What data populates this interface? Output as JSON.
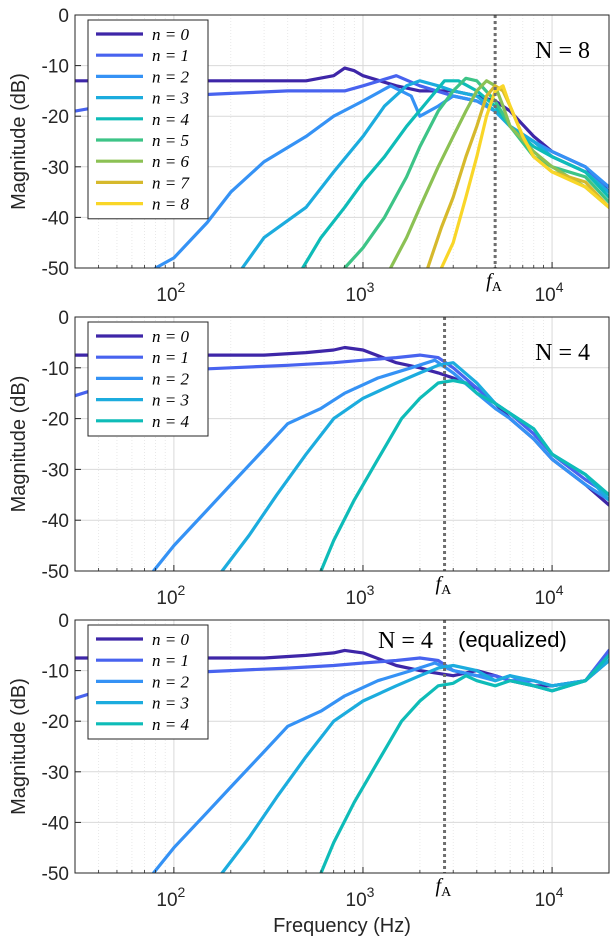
{
  "figure": {
    "xlabel": "Frequency (Hz)",
    "ylabel": "Magnitude (dB)"
  },
  "colors": [
    "#3e26a8",
    "#4863ef",
    "#3592f5",
    "#1cacde",
    "#0ebcb8",
    "#3dc487",
    "#8cc154",
    "#d6b92c",
    "#f9d628"
  ],
  "chart_data": [
    {
      "type": "line",
      "xscale": "log",
      "xlim": [
        30,
        20000
      ],
      "ylim": [
        -50,
        0
      ],
      "xticks": [
        100,
        1000,
        10000
      ],
      "xticklabels": [
        {
          "base": "10",
          "exp": "2"
        },
        {
          "base": "10",
          "exp": "3"
        },
        {
          "base": "10",
          "exp": "4"
        }
      ],
      "yticks": [
        0,
        -10,
        -20,
        -30,
        -40,
        -50
      ],
      "yticklabels": [
        "0",
        "-10",
        "-20",
        "-30",
        "-40",
        "-50"
      ],
      "grid": true,
      "legend_position": "top-left",
      "annotation": {
        "math": "N = 8",
        "text": ""
      },
      "fA": {
        "x": 5000,
        "label": "f",
        "sub": "A"
      },
      "series": [
        {
          "name": "n = 0",
          "x": [
            30,
            100,
            300,
            500,
            700,
            800,
            900,
            1000,
            1500,
            2000,
            3000,
            4000,
            5000,
            6000,
            8000,
            10000,
            15000,
            20000
          ],
          "y": [
            -13,
            -13,
            -13,
            -13,
            -12,
            -10.5,
            -11,
            -12,
            -14,
            -15,
            -15,
            -16,
            -17,
            -19,
            -24,
            -27,
            -30,
            -35
          ]
        },
        {
          "name": "n = 1",
          "x": [
            30,
            60,
            100,
            200,
            400,
            800,
            1000,
            1500,
            2000,
            3000,
            4000,
            5000,
            6000,
            8000,
            10000,
            15000,
            20000
          ],
          "y": [
            -19,
            -17,
            -16,
            -15.5,
            -15,
            -15,
            -14,
            -12,
            -14,
            -16,
            -17,
            -19,
            -22,
            -25,
            -28,
            -31,
            -34
          ]
        },
        {
          "name": "n = 2",
          "x": [
            80,
            100,
            150,
            200,
            300,
            500,
            700,
            1000,
            1400,
            1800,
            2000,
            2500,
            3000,
            4000,
            5000,
            6000,
            8000,
            10000,
            15000,
            20000
          ],
          "y": [
            -50,
            -48,
            -41,
            -35,
            -29,
            -24,
            -20,
            -17,
            -14,
            -16,
            -20,
            -18,
            -16,
            -17,
            -19,
            -22,
            -25,
            -27,
            -30,
            -34
          ]
        },
        {
          "name": "n = 3",
          "x": [
            230,
            300,
            500,
            700,
            1000,
            1300,
            1700,
            2000,
            2500,
            3000,
            4000,
            5000,
            6000,
            8000,
            10000,
            15000,
            20000
          ],
          "y": [
            -50,
            -44,
            -38,
            -31,
            -24,
            -18,
            -14,
            -13,
            -14,
            -15,
            -16,
            -19,
            -22,
            -25,
            -28,
            -31,
            -35
          ]
        },
        {
          "name": "n = 4",
          "x": [
            480,
            600,
            800,
            1000,
            1300,
            1700,
            2200,
            2700,
            3200,
            4000,
            5000,
            6000,
            8000,
            10000,
            15000,
            20000
          ],
          "y": [
            -50,
            -44,
            -38,
            -33,
            -28,
            -22,
            -17,
            -13,
            -13,
            -15,
            -18,
            -22,
            -26,
            -28,
            -31,
            -36
          ]
        },
        {
          "name": "n = 5",
          "x": [
            800,
            1000,
            1300,
            1700,
            2000,
            2500,
            3000,
            3500,
            4000,
            5000,
            6000,
            8000,
            10000,
            15000,
            20000
          ],
          "y": [
            -50,
            -46,
            -40,
            -32,
            -26,
            -19,
            -15,
            -12.5,
            -13,
            -17,
            -22,
            -28,
            -30,
            -32,
            -37
          ]
        },
        {
          "name": "n = 6",
          "x": [
            1400,
            1700,
            2000,
            2500,
            3000,
            3500,
            4000,
            4500,
            5000,
            5500,
            6000,
            8000,
            10000,
            15000,
            20000
          ],
          "y": [
            -50,
            -44,
            -38,
            -30,
            -24,
            -19,
            -15,
            -13,
            -14,
            -18,
            -22,
            -27,
            -30,
            -34,
            -38
          ]
        },
        {
          "name": "n = 7",
          "x": [
            2200,
            2600,
            3000,
            3500,
            4000,
            4500,
            5000,
            5500,
            6000,
            7000,
            8000,
            10000,
            15000,
            20000
          ],
          "y": [
            -50,
            -42,
            -36,
            -28,
            -22,
            -16,
            -14,
            -15,
            -18,
            -24,
            -28,
            -31,
            -33,
            -38
          ]
        },
        {
          "name": "n = 8",
          "x": [
            2600,
            3000,
            3500,
            4000,
            4500,
            5000,
            5500,
            6000,
            7000,
            8000,
            10000,
            15000,
            20000
          ],
          "y": [
            -50,
            -45,
            -36,
            -28,
            -20,
            -15,
            -14,
            -18,
            -24,
            -28,
            -31,
            -34,
            -38
          ]
        }
      ]
    },
    {
      "type": "line",
      "xscale": "log",
      "xlim": [
        30,
        20000
      ],
      "ylim": [
        -50,
        0
      ],
      "xticks": [
        100,
        1000,
        10000
      ],
      "xticklabels": [
        {
          "base": "10",
          "exp": "2"
        },
        {
          "base": "10",
          "exp": "3"
        },
        {
          "base": "10",
          "exp": "4"
        }
      ],
      "yticks": [
        0,
        -10,
        -20,
        -30,
        -40,
        -50
      ],
      "yticklabels": [
        "0",
        "-10",
        "-20",
        "-30",
        "-40",
        "-50"
      ],
      "grid": true,
      "legend_position": "top-left",
      "annotation": {
        "math": "N = 4",
        "text": ""
      },
      "fA": {
        "x": 2700,
        "label": "f",
        "sub": "A"
      },
      "series": [
        {
          "name": "n = 0",
          "x": [
            30,
            100,
            300,
            500,
            700,
            800,
            1000,
            1500,
            2000,
            2500,
            3000,
            4000,
            5000,
            6000,
            8000,
            10000,
            15000,
            20000
          ],
          "y": [
            -7.5,
            -7.5,
            -7.5,
            -7,
            -6.5,
            -6,
            -6.5,
            -9,
            -10,
            -11,
            -12,
            -14,
            -17,
            -20,
            -24,
            -28,
            -33,
            -37
          ]
        },
        {
          "name": "n = 1",
          "x": [
            30,
            60,
            100,
            200,
            400,
            700,
            1000,
            1500,
            2000,
            2500,
            3000,
            4000,
            5000,
            6000,
            8000,
            10000,
            15000,
            20000
          ],
          "y": [
            -15.5,
            -12,
            -10.5,
            -10,
            -9.5,
            -9,
            -8.5,
            -8,
            -7.5,
            -8,
            -10,
            -14,
            -17,
            -19,
            -23,
            -27,
            -32,
            -35
          ]
        },
        {
          "name": "n = 2",
          "x": [
            78,
            100,
            150,
            200,
            300,
            400,
            600,
            800,
            1200,
            1800,
            2400,
            3000,
            4000,
            5000,
            6000,
            8000,
            10000,
            15000,
            20000
          ],
          "y": [
            -50,
            -45,
            -38,
            -33,
            -26,
            -21,
            -18,
            -15,
            -12,
            -10,
            -8.5,
            -11,
            -15,
            -18,
            -20,
            -24,
            -28,
            -33,
            -36
          ]
        },
        {
          "name": "n = 3",
          "x": [
            180,
            250,
            350,
            500,
            700,
            1000,
            1500,
            2000,
            2500,
            3000,
            4000,
            5000,
            6000,
            8000,
            10000,
            15000,
            20000
          ],
          "y": [
            -50,
            -43,
            -35,
            -27,
            -20,
            -16,
            -13,
            -11,
            -9.5,
            -9,
            -13,
            -17,
            -19,
            -22,
            -27,
            -31,
            -36
          ]
        },
        {
          "name": "n = 4",
          "x": [
            600,
            700,
            900,
            1200,
            1600,
            2000,
            2500,
            3000,
            3500,
            4000,
            5000,
            6000,
            8000,
            10000,
            15000,
            20000
          ],
          "y": [
            -50,
            -44,
            -36,
            -28,
            -20,
            -16,
            -13,
            -12.5,
            -13,
            -15,
            -17,
            -19,
            -22,
            -27,
            -31,
            -35
          ]
        }
      ]
    },
    {
      "type": "line",
      "xscale": "log",
      "xlim": [
        30,
        20000
      ],
      "ylim": [
        -50,
        0
      ],
      "xticks": [
        100,
        1000,
        10000
      ],
      "xticklabels": [
        {
          "base": "10",
          "exp": "2"
        },
        {
          "base": "10",
          "exp": "3"
        },
        {
          "base": "10",
          "exp": "4"
        }
      ],
      "yticks": [
        0,
        -10,
        -20,
        -30,
        -40,
        -50
      ],
      "yticklabels": [
        "0",
        "-10",
        "-20",
        "-30",
        "-40",
        "-50"
      ],
      "grid": true,
      "legend_position": "top-left",
      "annotation": {
        "math": "N = 4",
        "text": "(equalized)"
      },
      "fA": {
        "x": 2700,
        "label": "f",
        "sub": "A"
      },
      "series": [
        {
          "name": "n = 0",
          "x": [
            30,
            100,
            300,
            500,
            700,
            800,
            1000,
            1500,
            2000,
            3000,
            4000,
            5000,
            6000,
            8000,
            10000,
            15000,
            20000
          ],
          "y": [
            -7.5,
            -7.5,
            -7.5,
            -7,
            -6.5,
            -6,
            -6.5,
            -9,
            -10,
            -11,
            -10,
            -11,
            -12,
            -13,
            -13,
            -12,
            -8
          ]
        },
        {
          "name": "n = 1",
          "x": [
            30,
            60,
            100,
            200,
            400,
            700,
            1000,
            1500,
            2000,
            2500,
            3000,
            4000,
            5000,
            6000,
            8000,
            10000,
            15000,
            20000
          ],
          "y": [
            -15.5,
            -12,
            -10.5,
            -10,
            -9.5,
            -9,
            -8.5,
            -8,
            -7.5,
            -8,
            -10,
            -11,
            -11,
            -12,
            -12,
            -13,
            -12,
            -6
          ]
        },
        {
          "name": "n = 2",
          "x": [
            78,
            100,
            150,
            200,
            300,
            400,
            600,
            800,
            1200,
            1800,
            2400,
            3000,
            4000,
            5000,
            6000,
            8000,
            10000,
            15000,
            20000
          ],
          "y": [
            -50,
            -45,
            -38,
            -33,
            -26,
            -21,
            -18,
            -15,
            -12,
            -10,
            -8.5,
            -10,
            -11,
            -12,
            -11,
            -13,
            -14,
            -12,
            -7
          ]
        },
        {
          "name": "n = 3",
          "x": [
            180,
            250,
            350,
            500,
            700,
            1000,
            1500,
            2000,
            2500,
            3000,
            4000,
            5000,
            6000,
            8000,
            10000,
            15000,
            20000
          ],
          "y": [
            -50,
            -43,
            -35,
            -27,
            -20,
            -16,
            -13,
            -11,
            -9.5,
            -9,
            -10,
            -12,
            -11,
            -12,
            -13,
            -12,
            -8
          ]
        },
        {
          "name": "n = 4",
          "x": [
            600,
            700,
            900,
            1200,
            1600,
            2000,
            2500,
            3000,
            3500,
            4000,
            5000,
            6000,
            8000,
            10000,
            15000,
            20000
          ],
          "y": [
            -50,
            -44,
            -36,
            -28,
            -20,
            -16,
            -13,
            -12.5,
            -11,
            -12,
            -13,
            -12,
            -13,
            -14,
            -12,
            -7
          ]
        }
      ]
    }
  ]
}
